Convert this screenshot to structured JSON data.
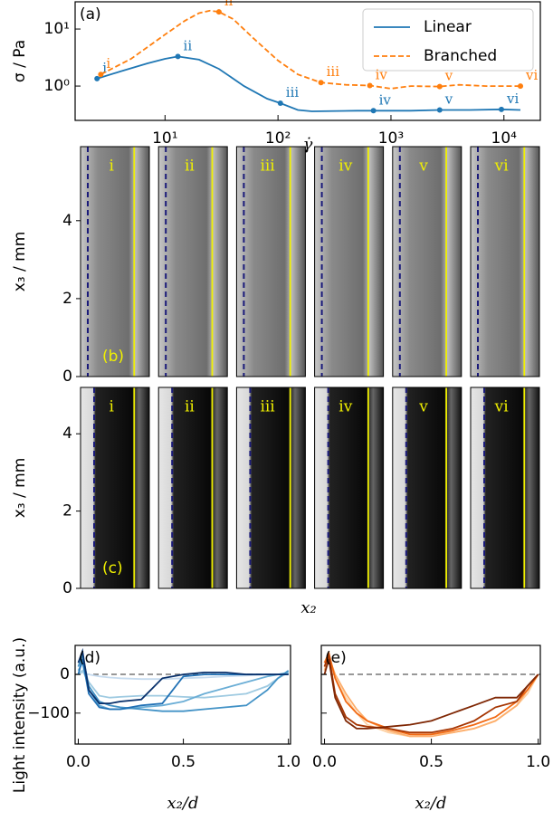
{
  "chart_data": [
    {
      "type": "loglog",
      "panel_label": "(a)",
      "xlabel": "γ̇",
      "ylabel": "σ / Pa",
      "xlim": [
        1.6,
        21000
      ],
      "ylim": [
        0.25,
        30
      ],
      "legend": "upper right",
      "xticks": [
        {
          "value": 10,
          "label": "10¹"
        },
        {
          "value": 100,
          "label": "10²"
        },
        {
          "value": 1000,
          "label": "10³"
        },
        {
          "value": 10000,
          "label": "10⁴"
        }
      ],
      "yticks": [
        {
          "value": 1,
          "label": "10⁰"
        },
        {
          "value": 10,
          "label": "10¹"
        }
      ],
      "series": [
        {
          "name": "Linear",
          "color": "#1f77b4",
          "linestyle": "solid",
          "x": [
            2.5,
            4,
            7,
            10,
            13,
            20,
            30,
            50,
            80,
            105,
            150,
            200,
            500,
            700,
            1500,
            2700,
            5000,
            9500,
            14000
          ],
          "values": [
            1.35,
            1.8,
            2.5,
            3.0,
            3.3,
            2.9,
            2.0,
            1.0,
            0.6,
            0.5,
            0.38,
            0.36,
            0.37,
            0.37,
            0.37,
            0.38,
            0.38,
            0.39,
            0.38
          ],
          "points": {
            "x": [
              2.5,
              13,
              105,
              700,
              2700,
              9500
            ],
            "values": [
              1.35,
              3.3,
              0.5,
              0.37,
              0.38,
              0.39
            ],
            "labels": [
              "i",
              "ii",
              "iii",
              "iv",
              "v",
              "vi"
            ]
          }
        },
        {
          "name": "Branched",
          "color": "#ff7f0e",
          "linestyle": "dashed",
          "x": [
            2.7,
            5,
            10,
            15,
            20,
            25,
            30,
            40,
            60,
            100,
            150,
            240,
            400,
            650,
            1000,
            1500,
            2700,
            4000,
            7000,
            14000
          ],
          "values": [
            1.6,
            3,
            8,
            14,
            19,
            21,
            20,
            15,
            7,
            2.8,
            1.6,
            1.15,
            1.05,
            1.02,
            0.9,
            1.0,
            0.98,
            1.05,
            1.0,
            1.0
          ],
          "points": {
            "x": [
              2.7,
              30,
              240,
              650,
              2700,
              14000
            ],
            "values": [
              1.6,
              20,
              1.15,
              1.02,
              0.98,
              1.0
            ],
            "labels": [
              "i",
              "ii",
              "iii",
              "iv",
              "v",
              "vi"
            ]
          }
        }
      ]
    },
    {
      "type": "image",
      "panel_label": "(b)",
      "ylabel": "x₃ / mm",
      "ylim": [
        0,
        5.9
      ],
      "yticks": [
        0,
        2,
        4
      ],
      "labels": [
        "i",
        "ii",
        "iii",
        "iv",
        "v",
        "vi"
      ]
    },
    {
      "type": "image",
      "panel_label": "(c)",
      "ylabel": "x₃ / mm",
      "xlabel": "x₂",
      "ylim": [
        0,
        5.2
      ],
      "yticks": [
        0,
        2,
        4
      ],
      "labels": [
        "i",
        "ii",
        "iii",
        "iv",
        "v",
        "vi"
      ]
    },
    {
      "type": "line",
      "panel_label": "(d)",
      "ylabel": "Light intensity (a.u.)",
      "xlabel": "x₂/d",
      "xlim": [
        -0.015,
        1.01
      ],
      "ylim": [
        -180,
        75
      ],
      "reference_line": 0,
      "xticks": [
        {
          "value": 0,
          "label": "0.0"
        },
        {
          "value": 0.5,
          "label": "0.5"
        },
        {
          "value": 1,
          "label": "1.0"
        }
      ],
      "yticks": [
        0,
        {
          "value": -100,
          "label": "−100"
        }
      ],
      "x": [
        0,
        0.02,
        0.05,
        0.1,
        0.15,
        0.2,
        0.3,
        0.4,
        0.5,
        0.6,
        0.7,
        0.8,
        0.9,
        0.95,
        1.0
      ],
      "series": [
        {
          "color": "#c6dbef",
          "values": [
            0,
            5,
            0,
            -5,
            -8,
            -10,
            -12,
            -12,
            -10,
            -8,
            -5,
            -3,
            0,
            0,
            0
          ]
        },
        {
          "color": "#9ecae1",
          "values": [
            0,
            10,
            -20,
            -55,
            -60,
            -58,
            -55,
            -55,
            -58,
            -60,
            -55,
            -50,
            -30,
            -10,
            5
          ]
        },
        {
          "color": "#6baed6",
          "values": [
            10,
            30,
            -40,
            -80,
            -90,
            -90,
            -85,
            -80,
            -70,
            -50,
            -35,
            -20,
            -5,
            0,
            5
          ]
        },
        {
          "color": "#4292c6",
          "values": [
            20,
            50,
            -30,
            -70,
            -80,
            -85,
            -90,
            -95,
            -95,
            -90,
            -85,
            -80,
            -40,
            -10,
            10
          ]
        },
        {
          "color": "#2171b5",
          "values": [
            0,
            40,
            -50,
            -85,
            -90,
            -90,
            -80,
            -75,
            -5,
            0,
            0,
            0,
            0,
            0,
            0
          ]
        },
        {
          "color": "#08306b",
          "values": [
            30,
            60,
            -40,
            -75,
            -75,
            -70,
            -65,
            -10,
            0,
            5,
            5,
            0,
            0,
            0,
            0
          ]
        }
      ]
    },
    {
      "type": "line",
      "panel_label": "(e)",
      "xlabel": "x₂/d",
      "xlim": [
        -0.015,
        1.01
      ],
      "ylim": [
        -180,
        75
      ],
      "reference_line": 0,
      "xticks": [
        {
          "value": 0,
          "label": "0.0"
        },
        {
          "value": 0.5,
          "label": "0.5"
        },
        {
          "value": 1,
          "label": "1.0"
        }
      ],
      "yticks": [
        0,
        -100
      ],
      "x": [
        0,
        0.02,
        0.05,
        0.1,
        0.15,
        0.2,
        0.3,
        0.4,
        0.5,
        0.6,
        0.7,
        0.8,
        0.9,
        0.95,
        1.0
      ],
      "series": [
        {
          "color": "#fdd0a2",
          "values": [
            20,
            50,
            -10,
            -60,
            -100,
            -130,
            -150,
            -160,
            -155,
            -150,
            -140,
            -120,
            -80,
            -50,
            0
          ]
        },
        {
          "color": "#fdae6b",
          "values": [
            10,
            45,
            0,
            -50,
            -90,
            -120,
            -145,
            -160,
            -160,
            -150,
            -140,
            -120,
            -80,
            -40,
            0
          ]
        },
        {
          "color": "#f16913",
          "values": [
            30,
            55,
            -10,
            -70,
            -100,
            -120,
            -140,
            -155,
            -155,
            -145,
            -130,
            -110,
            -70,
            -40,
            0
          ]
        },
        {
          "color": "#a63603",
          "values": [
            20,
            50,
            -50,
            -110,
            -130,
            -135,
            -140,
            -150,
            -150,
            -140,
            -120,
            -85,
            -70,
            -30,
            0
          ]
        },
        {
          "color": "#7f2704",
          "values": [
            0,
            40,
            -60,
            -120,
            -140,
            -140,
            -135,
            -130,
            -120,
            -100,
            -80,
            -60,
            -60,
            -30,
            0
          ]
        }
      ]
    }
  ]
}
